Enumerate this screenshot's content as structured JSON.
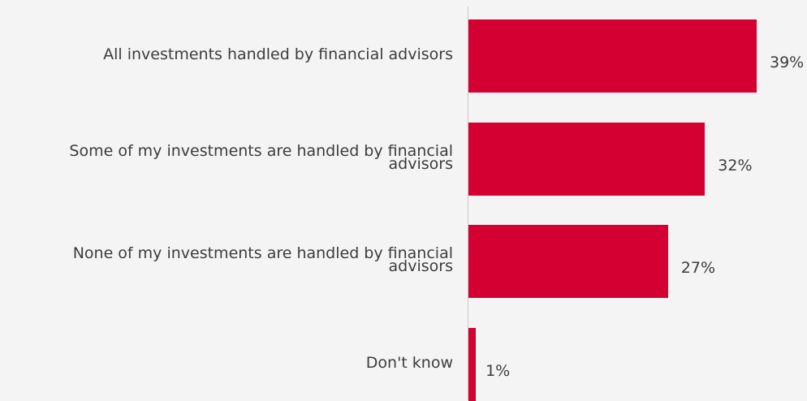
{
  "chart_data": {
    "type": "bar",
    "orientation": "horizontal",
    "categories": [
      "All investments handled by financial advisors",
      "Some of my investments are handled by financial advisors",
      "None of my investments are handled by financial advisors",
      "Don't know"
    ],
    "category_lines": [
      [
        "All investments handled by financial advisors"
      ],
      [
        "Some of my investments are handled by financial",
        "advisors"
      ],
      [
        "None of my investments are handled by financial",
        "advisors"
      ],
      [
        "Don't know"
      ]
    ],
    "values": [
      39,
      32,
      27,
      1
    ],
    "value_labels": [
      "39%",
      "32%",
      "27%",
      "1%"
    ],
    "unit": "%",
    "xlim": [
      0,
      40
    ],
    "bar_color": "#d50032",
    "grid": false,
    "legend": "none"
  }
}
